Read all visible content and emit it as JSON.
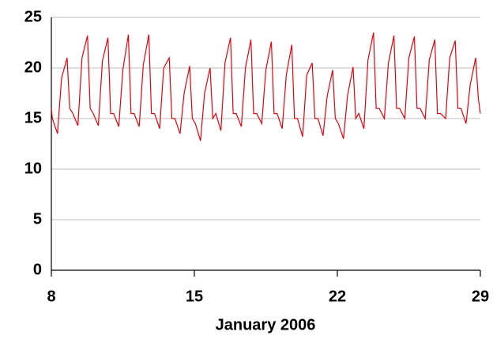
{
  "chart_data": {
    "type": "line",
    "xlabel": "January 2006",
    "x": [
      8,
      8.05,
      8.3,
      8.5,
      8.77,
      8.9,
      9.05,
      9.3,
      9.5,
      9.77,
      9.9,
      10.05,
      10.3,
      10.5,
      10.77,
      10.9,
      11.05,
      11.3,
      11.5,
      11.77,
      11.9,
      12.05,
      12.3,
      12.5,
      12.77,
      12.9,
      13.05,
      13.3,
      13.5,
      13.77,
      13.9,
      14.05,
      14.3,
      14.5,
      14.77,
      14.9,
      15.05,
      15.3,
      15.5,
      15.77,
      15.9,
      16.05,
      16.3,
      16.5,
      16.77,
      16.9,
      17.05,
      17.3,
      17.5,
      17.77,
      17.9,
      18.05,
      18.3,
      18.5,
      18.77,
      18.9,
      19.05,
      19.3,
      19.5,
      19.77,
      19.9,
      20.05,
      20.3,
      20.5,
      20.77,
      20.9,
      21.05,
      21.3,
      21.5,
      21.77,
      21.9,
      22.05,
      22.3,
      22.5,
      22.77,
      22.9,
      23.05,
      23.3,
      23.5,
      23.77,
      23.9,
      24.05,
      24.3,
      24.5,
      24.77,
      24.9,
      25.05,
      25.3,
      25.5,
      25.77,
      25.9,
      26.05,
      26.3,
      26.5,
      26.77,
      26.9,
      27.05,
      27.3,
      27.5,
      27.77,
      27.9,
      28.05,
      28.3,
      28.5,
      28.77,
      28.9,
      29
    ],
    "series": [
      {
        "color": "#e8000b",
        "values": [
          16,
          15,
          13.5,
          19,
          21,
          16,
          15.5,
          14.3,
          21,
          23.2,
          16,
          15.5,
          14.3,
          20.7,
          23,
          15.5,
          15.5,
          14.2,
          19.8,
          23.3,
          15.5,
          15.5,
          14.2,
          20.3,
          23.3,
          15.5,
          15.5,
          14,
          20,
          21,
          15,
          15,
          13.5,
          17.5,
          20.2,
          15,
          14.5,
          12.8,
          17.5,
          20,
          15,
          15.5,
          13.8,
          20.5,
          23,
          15.5,
          15.5,
          14.2,
          20,
          22.8,
          15.5,
          15.5,
          14.5,
          19.8,
          22.6,
          15.5,
          15.5,
          14,
          19.3,
          22.3,
          15,
          15,
          13.2,
          19.3,
          20.5,
          15,
          15,
          13.3,
          17.2,
          19.8,
          15,
          14.5,
          13,
          17.3,
          20.1,
          15,
          15.5,
          14,
          20.8,
          23.5,
          16,
          16,
          15,
          20.5,
          23.2,
          16,
          16,
          15,
          21,
          23.1,
          16,
          16,
          15,
          20.8,
          22.8,
          15.5,
          15.5,
          15,
          21,
          22.7,
          16,
          16,
          14.5,
          18.3,
          21,
          17,
          15.5
        ]
      }
    ],
    "xlim": [
      8,
      29
    ],
    "xticks": [
      8,
      15,
      22,
      29
    ],
    "ylim": [
      0,
      25
    ],
    "yticks": [
      0,
      5,
      10,
      15,
      20,
      25
    ],
    "grid": true
  }
}
